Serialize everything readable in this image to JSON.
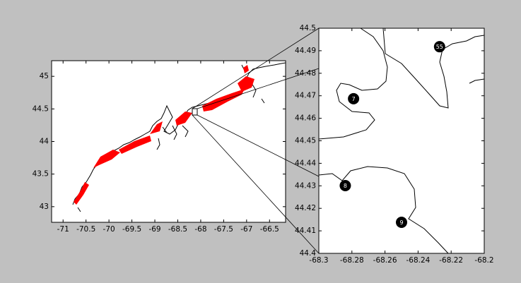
{
  "chart_data": [
    {
      "type": "map",
      "xlim": [
        -71.25,
        -66.15
      ],
      "ylim": [
        42.76,
        45.24
      ],
      "xticks": [
        -71,
        -70.5,
        -70,
        -69.5,
        -69,
        -68.5,
        -68,
        -67.5,
        -67,
        -66.5
      ],
      "yticks": [
        43,
        43.5,
        44,
        44.5,
        45
      ]
    },
    {
      "type": "scatter",
      "xlim": [
        -68.3,
        -68.2
      ],
      "ylim": [
        44.4,
        44.5
      ],
      "xticks": [
        -68.3,
        -68.28,
        -68.26,
        -68.24,
        -68.22,
        -68.2
      ],
      "yticks": [
        44.4,
        44.41,
        44.42,
        44.43,
        44.44,
        44.45,
        44.46,
        44.47,
        44.48,
        44.49,
        44.5
      ],
      "labels": [
        "55",
        "7",
        "8",
        "9"
      ],
      "x": [
        -68.227,
        -68.279,
        -68.284,
        -68.25
      ],
      "values": [
        44.4918,
        44.4687,
        44.4301,
        44.4138
      ],
      "color": "#000000"
    }
  ]
}
